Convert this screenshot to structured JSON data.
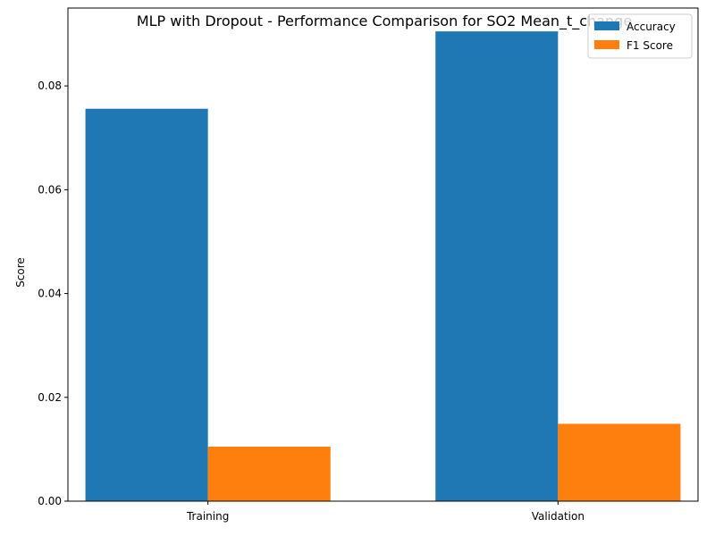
{
  "chart_data": {
    "type": "bar",
    "title": "MLP with Dropout - Performance Comparison for SO2 Mean_t_change",
    "xlabel": "",
    "ylabel": "Score",
    "categories": [
      "Training",
      "Validation"
    ],
    "series": [
      {
        "name": "Accuracy",
        "values": [
          0.0756,
          0.0905
        ],
        "color": "#1f77b4"
      },
      {
        "name": "F1 Score",
        "values": [
          0.0105,
          0.0149
        ],
        "color": "#ff7f0e"
      }
    ],
    "ylim": [
      0,
      0.095
    ],
    "yticks": [
      0.0,
      0.02,
      0.04,
      0.06,
      0.08
    ],
    "ytick_labels": [
      "0.00",
      "0.02",
      "0.04",
      "0.06",
      "0.08"
    ],
    "grid": false,
    "legend_position": "top-right"
  }
}
